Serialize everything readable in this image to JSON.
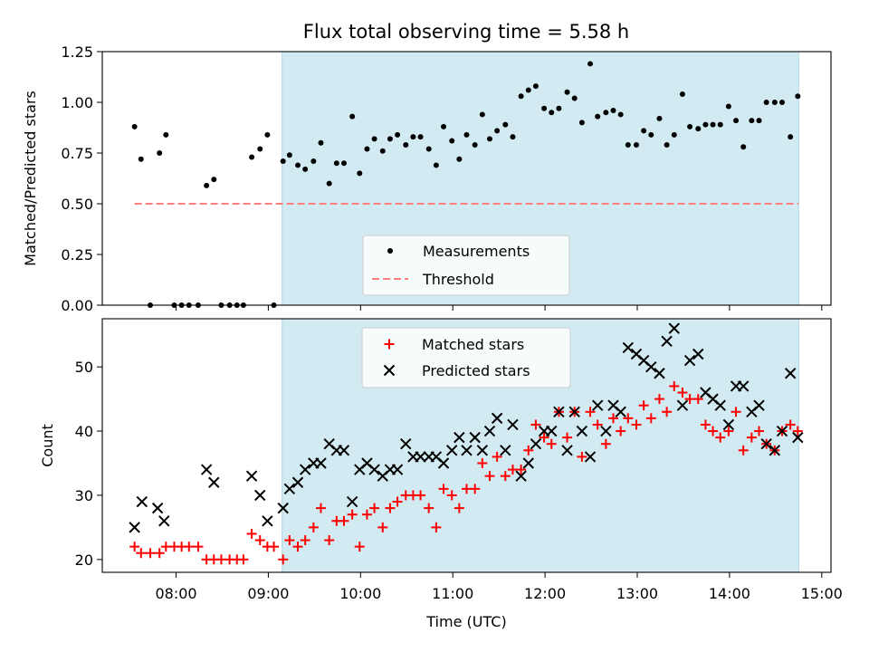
{
  "title": "Flux total observing time = 5.58 h",
  "colors": {
    "shade": "#add8e6",
    "matched": "#ff0000",
    "predicted": "#000000",
    "measurement": "#000000",
    "threshold": "#ff7f7f"
  },
  "chart_data": [
    {
      "type": "scatter",
      "ylabel": "Matched/Predicted stars",
      "xlim": [
        7.2,
        15.1
      ],
      "ylim": [
        0,
        1.25
      ],
      "yticks": [
        0.0,
        0.25,
        0.5,
        0.75,
        1.0,
        1.25
      ],
      "ytick_labels": [
        "0.00",
        "0.25",
        "0.50",
        "0.75",
        "1.00",
        "1.25"
      ],
      "shaded_span": [
        9.15,
        14.75
      ],
      "legend": {
        "placement": "lower-center",
        "entries": [
          "Measurements",
          "Threshold"
        ]
      },
      "threshold": {
        "y": 0.5,
        "x": [
          7.55,
          14.75
        ]
      },
      "series": [
        {
          "name": "Measurements",
          "x": [
            7.55,
            7.62,
            7.72,
            7.82,
            7.89,
            7.98,
            8.06,
            8.14,
            8.24,
            8.33,
            8.41,
            8.49,
            8.58,
            8.66,
            8.73,
            8.82,
            8.91,
            8.99,
            9.06,
            9.16,
            9.23,
            9.32,
            9.4,
            9.49,
            9.57,
            9.66,
            9.74,
            9.82,
            9.91,
            9.99,
            10.07,
            10.15,
            10.24,
            10.32,
            10.4,
            10.49,
            10.57,
            10.65,
            10.74,
            10.82,
            10.9,
            10.99,
            11.07,
            11.15,
            11.24,
            11.32,
            11.4,
            11.48,
            11.57,
            11.65,
            11.74,
            11.82,
            11.9,
            11.99,
            12.07,
            12.15,
            12.24,
            12.32,
            12.4,
            12.49,
            12.57,
            12.66,
            12.74,
            12.82,
            12.9,
            12.99,
            13.07,
            13.15,
            13.24,
            13.32,
            13.4,
            13.49,
            13.57,
            13.66,
            13.74,
            13.82,
            13.9,
            13.99,
            14.07,
            14.15,
            14.24,
            14.32,
            14.4,
            14.49,
            14.57,
            14.66,
            14.74
          ],
          "y": [
            0.88,
            0.72,
            0.0,
            0.75,
            0.84,
            0.0,
            0.0,
            0.0,
            0.0,
            0.59,
            0.62,
            0.0,
            0.0,
            0.0,
            0.0,
            0.73,
            0.77,
            0.84,
            0.0,
            0.71,
            0.74,
            0.69,
            0.67,
            0.71,
            0.8,
            0.6,
            0.7,
            0.7,
            0.93,
            0.65,
            0.77,
            0.82,
            0.76,
            0.82,
            0.84,
            0.79,
            0.83,
            0.83,
            0.77,
            0.69,
            0.88,
            0.81,
            0.72,
            0.84,
            0.79,
            0.94,
            0.82,
            0.86,
            0.89,
            0.83,
            1.03,
            1.06,
            1.08,
            0.97,
            0.95,
            0.97,
            1.05,
            1.02,
            0.9,
            1.19,
            0.93,
            0.95,
            0.96,
            0.94,
            0.79,
            0.79,
            0.86,
            0.84,
            0.92,
            0.79,
            0.84,
            1.04,
            0.88,
            0.87,
            0.89,
            0.89,
            0.89,
            0.98,
            0.91,
            0.78,
            0.91,
            0.91,
            1.0,
            1.0,
            1.0,
            0.83,
            1.03
          ]
        }
      ]
    },
    {
      "type": "scatter",
      "xlabel": "Time (UTC)",
      "ylabel": "Count",
      "xlim": [
        7.2,
        15.1
      ],
      "ylim": [
        18,
        57.5
      ],
      "yticks": [
        20,
        30,
        40,
        50
      ],
      "ytick_labels": [
        "20",
        "30",
        "40",
        "50"
      ],
      "xticks": [
        8,
        9,
        10,
        11,
        12,
        13,
        14,
        15
      ],
      "xtick_labels": [
        "08:00",
        "09:00",
        "10:00",
        "11:00",
        "12:00",
        "13:00",
        "14:00",
        "15:00"
      ],
      "shaded_span": [
        9.15,
        14.75
      ],
      "legend": {
        "placement": "upper-center",
        "entries": [
          "Matched stars",
          "Predicted stars"
        ]
      },
      "series": [
        {
          "name": "Matched stars",
          "marker": "+",
          "x": [
            7.55,
            7.62,
            7.72,
            7.82,
            7.89,
            7.98,
            8.06,
            8.14,
            8.24,
            8.33,
            8.41,
            8.49,
            8.58,
            8.66,
            8.73,
            8.82,
            8.91,
            8.99,
            9.06,
            9.16,
            9.23,
            9.32,
            9.4,
            9.49,
            9.57,
            9.66,
            9.74,
            9.82,
            9.91,
            9.99,
            10.07,
            10.15,
            10.24,
            10.32,
            10.4,
            10.49,
            10.57,
            10.65,
            10.74,
            10.82,
            10.9,
            10.99,
            11.07,
            11.15,
            11.24,
            11.32,
            11.4,
            11.48,
            11.57,
            11.65,
            11.74,
            11.82,
            11.9,
            11.99,
            12.07,
            12.15,
            12.24,
            12.32,
            12.4,
            12.49,
            12.57,
            12.66,
            12.74,
            12.82,
            12.9,
            12.99,
            13.07,
            13.15,
            13.24,
            13.32,
            13.4,
            13.49,
            13.57,
            13.66,
            13.74,
            13.82,
            13.9,
            13.99,
            14.07,
            14.15,
            14.24,
            14.32,
            14.4,
            14.49,
            14.57,
            14.66,
            14.74
          ],
          "y": [
            22,
            21,
            21,
            21,
            22,
            22,
            22,
            22,
            22,
            20,
            20,
            20,
            20,
            20,
            20,
            24,
            23,
            22,
            22,
            20,
            23,
            22,
            23,
            25,
            28,
            23,
            26,
            26,
            27,
            22,
            27,
            28,
            25,
            28,
            29,
            30,
            30,
            30,
            28,
            25,
            31,
            30,
            28,
            31,
            31,
            35,
            33,
            36,
            33,
            34,
            34,
            37,
            41,
            39,
            38,
            43,
            39,
            43,
            36,
            43,
            41,
            38,
            42,
            40,
            42,
            41,
            44,
            42,
            45,
            43,
            47,
            46,
            45,
            45,
            41,
            40,
            39,
            40,
            43,
            37,
            39,
            40,
            38,
            37,
            40,
            41,
            40
          ]
        },
        {
          "name": "Predicted stars",
          "marker": "x",
          "x": [
            7.55,
            7.63,
            7.8,
            7.87,
            8.33,
            8.41,
            8.82,
            8.91,
            8.99,
            9.16,
            9.23,
            9.32,
            9.4,
            9.49,
            9.57,
            9.66,
            9.74,
            9.82,
            9.91,
            9.99,
            10.07,
            10.15,
            10.24,
            10.32,
            10.4,
            10.49,
            10.57,
            10.65,
            10.74,
            10.82,
            10.9,
            10.99,
            11.07,
            11.15,
            11.24,
            11.32,
            11.4,
            11.48,
            11.57,
            11.65,
            11.74,
            11.82,
            11.9,
            11.99,
            12.07,
            12.15,
            12.24,
            12.32,
            12.4,
            12.49,
            12.57,
            12.66,
            12.74,
            12.82,
            12.9,
            12.99,
            13.07,
            13.15,
            13.24,
            13.32,
            13.4,
            13.49,
            13.57,
            13.66,
            13.74,
            13.82,
            13.9,
            13.99,
            14.07,
            14.15,
            14.24,
            14.32,
            14.4,
            14.49,
            14.57,
            14.66,
            14.74
          ],
          "y": [
            25,
            29,
            28,
            26,
            34,
            32,
            33,
            30,
            26,
            28,
            31,
            32,
            34,
            35,
            35,
            38,
            37,
            37,
            29,
            34,
            35,
            34,
            33,
            34,
            34,
            38,
            36,
            36,
            36,
            36,
            35,
            37,
            39,
            37,
            39,
            37,
            40,
            42,
            37,
            41,
            33,
            35,
            38,
            40,
            40,
            43,
            37,
            43,
            40,
            36,
            44,
            40,
            44,
            43,
            53,
            52,
            51,
            50,
            49,
            54,
            56,
            44,
            51,
            52,
            46,
            45,
            44,
            41,
            47,
            47,
            43,
            44,
            38,
            37,
            40,
            49,
            39
          ]
        }
      ]
    }
  ]
}
